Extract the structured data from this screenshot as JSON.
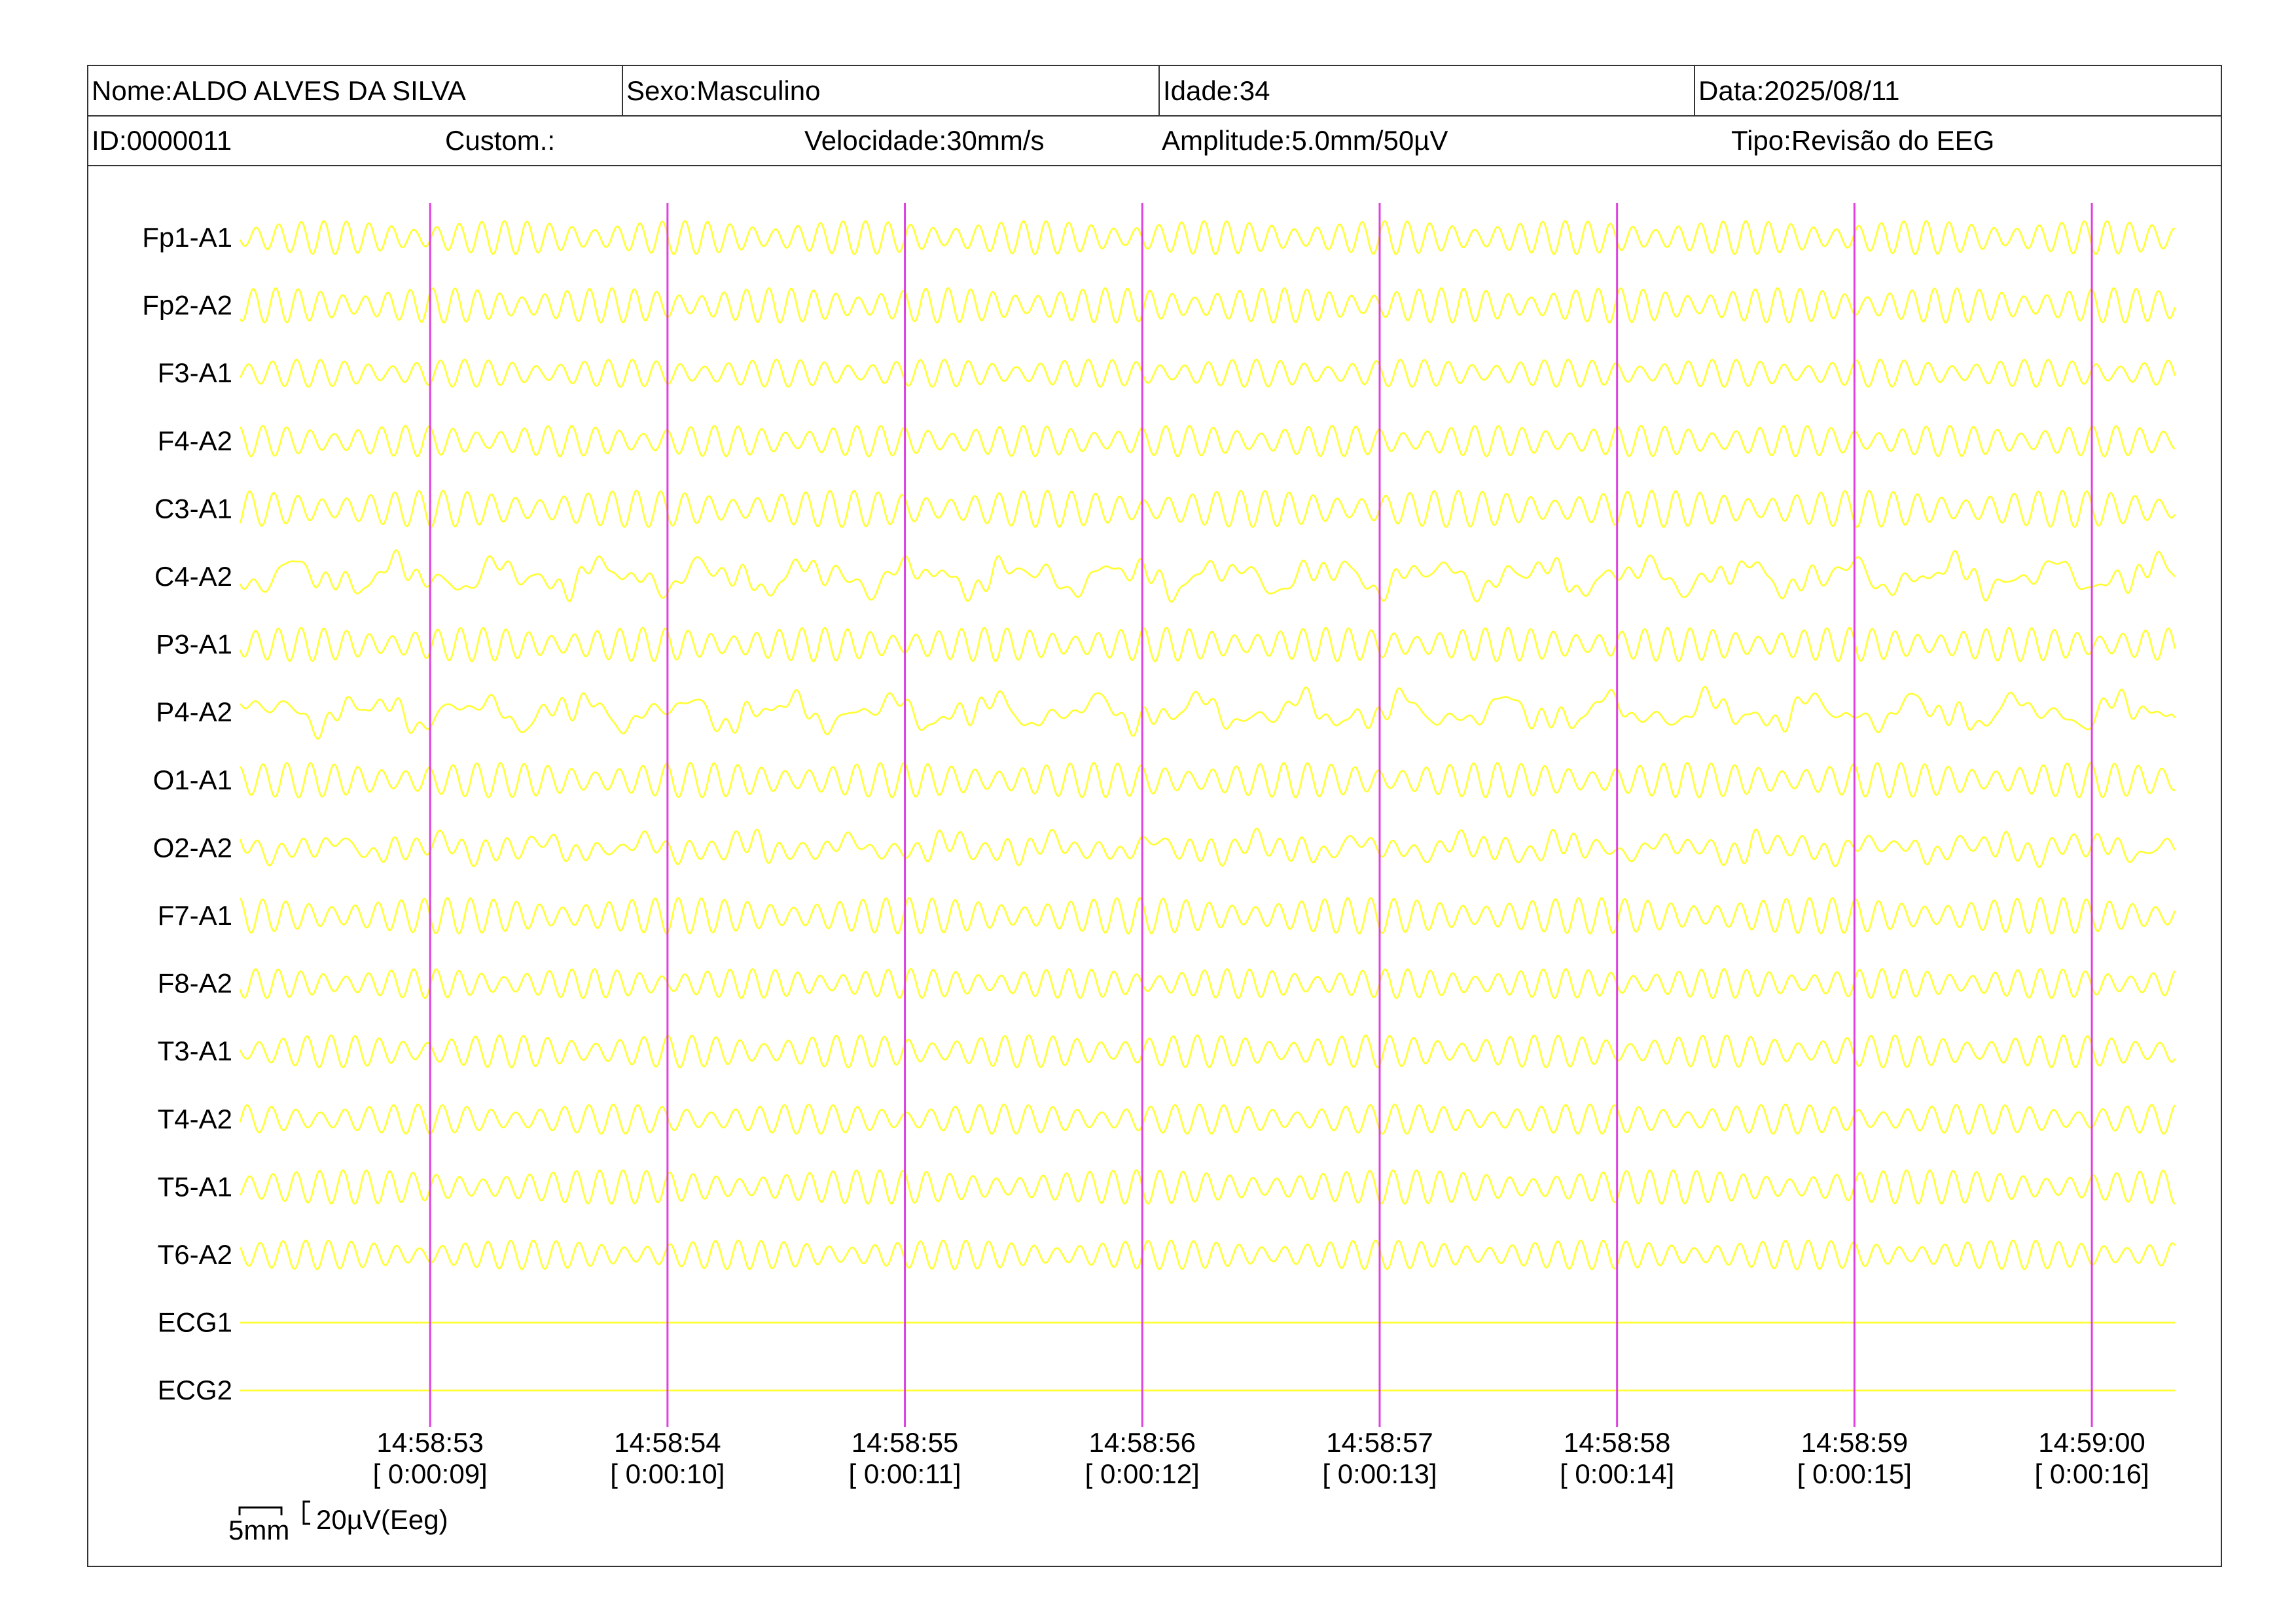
{
  "header": {
    "name": "Nome:ALDO ALVES DA SILVA",
    "sex": "Sexo:Masculino",
    "age": "Idade:34",
    "date": "Data:2025/08/11",
    "id": "ID:0000011",
    "custom": "Custom.:",
    "speed": "Velocidade:30mm/s",
    "amplitude": "Amplitude:5.0mm/50µV",
    "type": "Tipo:Revisão do EEG"
  },
  "colors": {
    "trace": "#ffff33",
    "marker": "#e040e0",
    "border": "#333333"
  },
  "chart_data": {
    "type": "line",
    "title": "",
    "channels": [
      "Fp1-A1",
      "Fp2-A2",
      "F3-A1",
      "F4-A2",
      "C3-A1",
      "C4-A2",
      "P3-A1",
      "P4-A2",
      "O1-A1",
      "O2-A2",
      "F7-A1",
      "F8-A2",
      "T3-A1",
      "T4-A2",
      "T5-A1",
      "T6-A2",
      "ECG1",
      "ECG2"
    ],
    "channel_style": [
      "alpha",
      "alpha",
      "alpha",
      "alpha",
      "alpha",
      "irregular",
      "alpha",
      "irregular",
      "alpha",
      "mixed",
      "alpha",
      "alpha",
      "alpha",
      "alpha",
      "alpha",
      "alpha",
      "flat",
      "flat"
    ],
    "time_window_s": [
      8.2,
      16.35
    ],
    "markers": [
      {
        "clock": "14:58:53",
        "elapsed": "[ 0:00:09]",
        "t": 9
      },
      {
        "clock": "14:58:54",
        "elapsed": "[ 0:00:10]",
        "t": 10
      },
      {
        "clock": "14:58:55",
        "elapsed": "[ 0:00:11]",
        "t": 11
      },
      {
        "clock": "14:58:56",
        "elapsed": "[ 0:00:12]",
        "t": 12
      },
      {
        "clock": "14:58:57",
        "elapsed": "[ 0:00:13]",
        "t": 13
      },
      {
        "clock": "14:58:58",
        "elapsed": "[ 0:00:14]",
        "t": 14
      },
      {
        "clock": "14:58:59",
        "elapsed": "[ 0:00:15]",
        "t": 15
      },
      {
        "clock": "14:59:00",
        "elapsed": "[ 0:00:16]",
        "t": 16
      }
    ],
    "scale_time": "5mm",
    "scale_amplitude": "20µV(Eeg)"
  }
}
